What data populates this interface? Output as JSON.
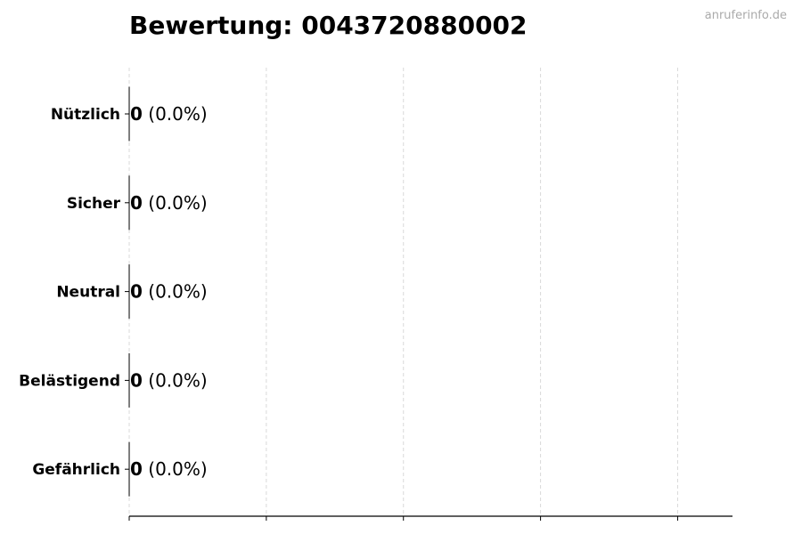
{
  "watermark": "anruferinfo.de",
  "chart_data": {
    "type": "bar",
    "orientation": "horizontal",
    "title": "Bewertung: 0043720880002",
    "categories": [
      "Nützlich",
      "Sicher",
      "Neutral",
      "Belästigend",
      "Gefährlich"
    ],
    "values": [
      0,
      0,
      0,
      0,
      0
    ],
    "data_labels": [
      {
        "count": "0",
        "percent": "(0.0%)"
      },
      {
        "count": "0",
        "percent": "(0.0%)"
      },
      {
        "count": "0",
        "percent": "(0.0%)"
      },
      {
        "count": "0",
        "percent": "(0.0%)"
      },
      {
        "count": "0",
        "percent": "(0.0%)"
      }
    ],
    "xlabel": "",
    "ylabel": "",
    "xlim": [
      0,
      4.4
    ],
    "xticks": [
      0,
      1,
      2,
      3,
      4
    ],
    "grid": "x-dashed",
    "bar_edge_color": "#000000",
    "grid_color": "#d9d9d9"
  }
}
